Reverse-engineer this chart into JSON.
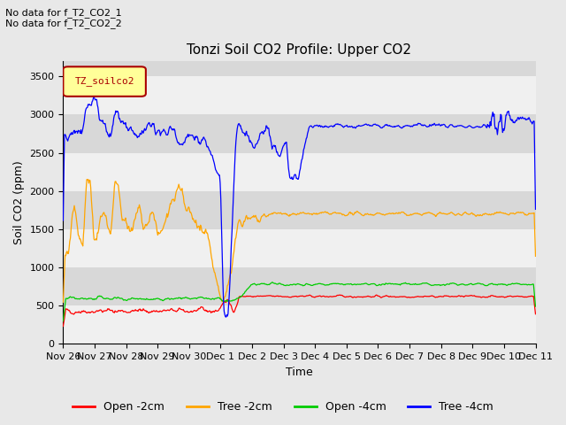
{
  "title": "Tonzi Soil CO2 Profile: Upper CO2",
  "ylabel": "Soil CO2 (ppm)",
  "xlabel": "Time",
  "annotations": [
    "No data for f_T2_CO2_1",
    "No data for f_T2_CO2_2"
  ],
  "legend_label": "TZ_soilco2",
  "legend_entries": [
    "Open -2cm",
    "Tree -2cm",
    "Open -4cm",
    "Tree -4cm"
  ],
  "legend_colors": [
    "#ff0000",
    "#ffa500",
    "#00cc00",
    "#0000ff"
  ],
  "ylim": [
    0,
    3700
  ],
  "bg_color": "#e8e8e8",
  "plot_bg_color": "#d8d8d8",
  "band_color": "#f0f0f0",
  "title_fontsize": 11,
  "axis_fontsize": 9,
  "tick_label_size": 8,
  "yticks": [
    0,
    500,
    1000,
    1500,
    2000,
    2500,
    3000,
    3500
  ],
  "x_tick_labels": [
    "Nov 26",
    "Nov 27",
    "Nov 28",
    "Nov 29",
    "Nov 30",
    "Dec 1",
    "Dec 2",
    "Dec 3",
    "Dec 4",
    "Dec 5",
    "Dec 6",
    "Dec 7",
    "Dec 8",
    "Dec 9",
    "Dec 10",
    "Dec 11"
  ]
}
